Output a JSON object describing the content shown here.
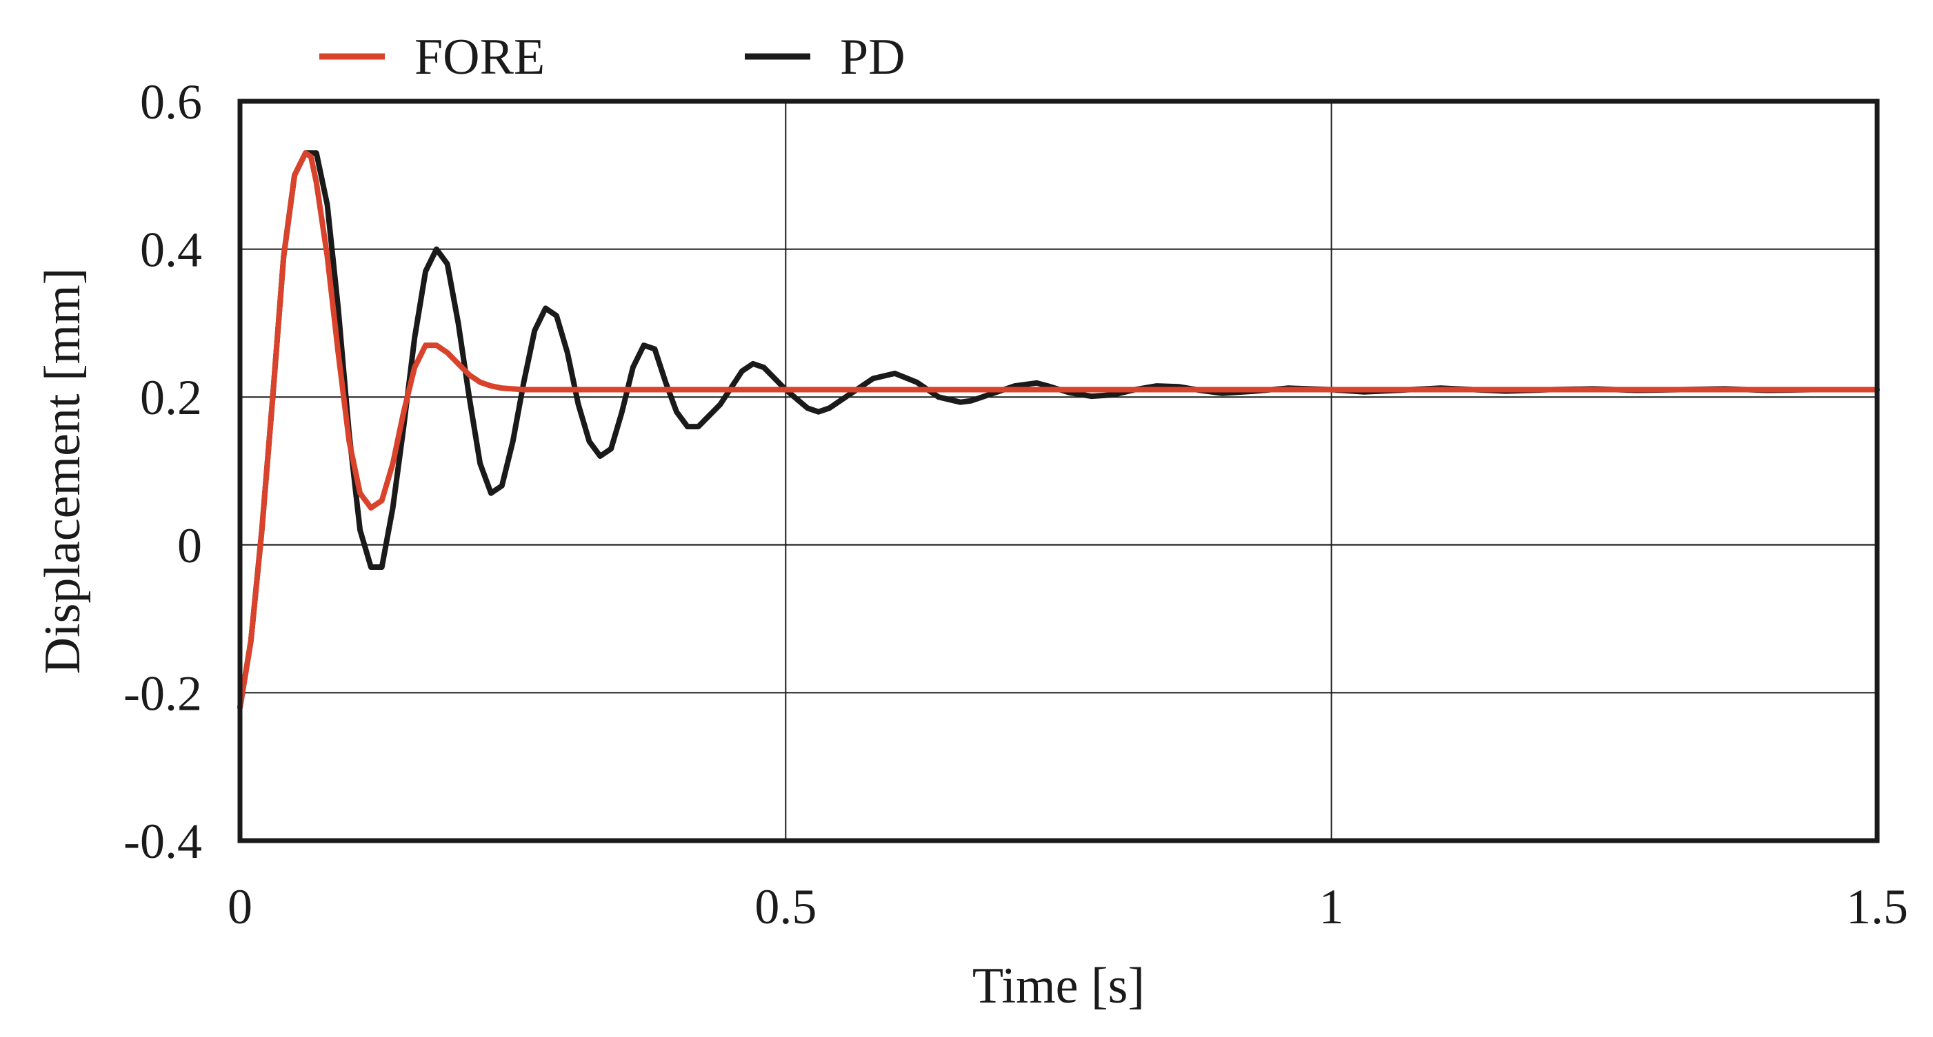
{
  "chart_data": {
    "type": "line",
    "title": "",
    "xlabel": "Time [s]",
    "ylabel": "Displacement [mm]",
    "xlim": [
      0,
      1.5
    ],
    "ylim": [
      -0.4,
      0.6
    ],
    "xticks": [
      0,
      0.5,
      1,
      1.5
    ],
    "xtick_labels": [
      "0",
      "0.5",
      "1",
      "1.5"
    ],
    "yticks": [
      -0.4,
      -0.2,
      0,
      0.2,
      0.4,
      0.6
    ],
    "ytick_labels": [
      "-0.4",
      "-0.2",
      "0",
      "0.2",
      "0.4",
      "0.6"
    ],
    "grid": true,
    "legend_position": "top",
    "series": [
      {
        "name": "FORE",
        "color": "#d9432b",
        "x": [
          0,
          0.01,
          0.02,
          0.03,
          0.04,
          0.05,
          0.06,
          0.065,
          0.07,
          0.08,
          0.09,
          0.1,
          0.11,
          0.12,
          0.13,
          0.14,
          0.15,
          0.16,
          0.17,
          0.18,
          0.19,
          0.2,
          0.21,
          0.22,
          0.23,
          0.24,
          0.25,
          0.26,
          0.27,
          0.28,
          0.3,
          0.4,
          0.6,
          0.8,
          1.0,
          1.2,
          1.4,
          1.5
        ],
        "y": [
          -0.22,
          -0.13,
          0.02,
          0.2,
          0.39,
          0.5,
          0.53,
          0.525,
          0.49,
          0.39,
          0.26,
          0.14,
          0.07,
          0.05,
          0.06,
          0.11,
          0.18,
          0.24,
          0.27,
          0.27,
          0.26,
          0.245,
          0.23,
          0.22,
          0.215,
          0.212,
          0.211,
          0.21,
          0.21,
          0.21,
          0.21,
          0.21,
          0.21,
          0.21,
          0.21,
          0.21,
          0.21,
          0.21
        ]
      },
      {
        "name": "PD",
        "color": "#1a1a1a",
        "x": [
          0,
          0.01,
          0.02,
          0.03,
          0.04,
          0.05,
          0.06,
          0.07,
          0.08,
          0.09,
          0.1,
          0.11,
          0.12,
          0.13,
          0.14,
          0.15,
          0.16,
          0.17,
          0.18,
          0.19,
          0.2,
          0.21,
          0.22,
          0.23,
          0.24,
          0.25,
          0.26,
          0.27,
          0.28,
          0.29,
          0.3,
          0.31,
          0.32,
          0.33,
          0.34,
          0.35,
          0.36,
          0.37,
          0.38,
          0.39,
          0.4,
          0.41,
          0.42,
          0.44,
          0.46,
          0.47,
          0.48,
          0.5,
          0.52,
          0.53,
          0.54,
          0.56,
          0.58,
          0.6,
          0.62,
          0.64,
          0.66,
          0.67,
          0.69,
          0.71,
          0.73,
          0.74,
          0.76,
          0.78,
          0.8,
          0.82,
          0.84,
          0.86,
          0.88,
          0.9,
          0.93,
          0.96,
          1.0,
          1.03,
          1.06,
          1.1,
          1.13,
          1.16,
          1.2,
          1.24,
          1.28,
          1.32,
          1.36,
          1.4,
          1.44,
          1.48,
          1.5
        ],
        "y": [
          -0.22,
          -0.13,
          0.02,
          0.2,
          0.39,
          0.5,
          0.53,
          0.53,
          0.46,
          0.32,
          0.15,
          0.02,
          -0.03,
          -0.03,
          0.05,
          0.16,
          0.28,
          0.37,
          0.4,
          0.38,
          0.3,
          0.2,
          0.11,
          0.07,
          0.08,
          0.14,
          0.22,
          0.29,
          0.32,
          0.31,
          0.26,
          0.19,
          0.14,
          0.12,
          0.13,
          0.18,
          0.24,
          0.27,
          0.265,
          0.22,
          0.18,
          0.16,
          0.16,
          0.19,
          0.235,
          0.245,
          0.24,
          0.21,
          0.185,
          0.18,
          0.185,
          0.205,
          0.225,
          0.232,
          0.22,
          0.2,
          0.193,
          0.195,
          0.205,
          0.215,
          0.219,
          0.215,
          0.206,
          0.201,
          0.203,
          0.21,
          0.215,
          0.214,
          0.209,
          0.205,
          0.208,
          0.212,
          0.21,
          0.207,
          0.209,
          0.212,
          0.21,
          0.208,
          0.21,
          0.211,
          0.209,
          0.21,
          0.211,
          0.209,
          0.21,
          0.21,
          0.21
        ]
      }
    ]
  }
}
